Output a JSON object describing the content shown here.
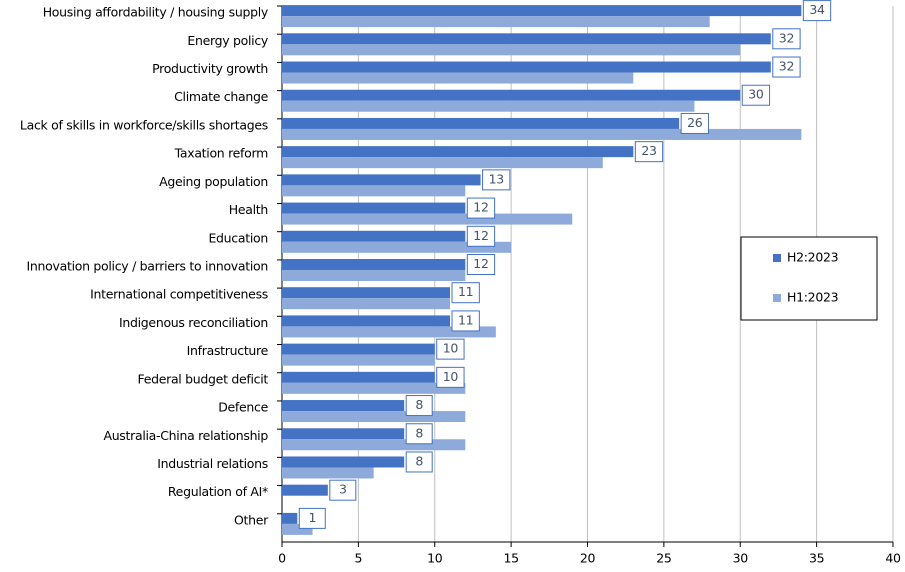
{
  "chart_data": {
    "type": "bar",
    "orientation": "horizontal",
    "categories": [
      "Housing affordability / housing supply",
      "Energy policy",
      "Productivity growth",
      "Climate change",
      "Lack of skills in workforce/skills shortages",
      "Taxation reform",
      "Ageing population",
      "Health",
      "Education",
      "Innovation policy / barriers to innovation",
      "International competitiveness",
      "Indigenous reconciliation",
      "Infrastructure",
      "Federal budget deficit",
      "Defence",
      "Australia-China relationship",
      "Industrial relations",
      "Regulation of AI*",
      "Other"
    ],
    "series": [
      {
        "name": "H2:2023",
        "color": "#4472c4",
        "values": [
          34,
          32,
          32,
          30,
          26,
          23,
          13,
          12,
          12,
          12,
          11,
          11,
          10,
          10,
          8,
          8,
          8,
          3,
          1
        ],
        "data_labels": true
      },
      {
        "name": "H1:2023",
        "color": "#8eaadb",
        "values": [
          28,
          30,
          23,
          27,
          34,
          21,
          12,
          19,
          15,
          12,
          11,
          14,
          10,
          12,
          12,
          12,
          6,
          null,
          2
        ],
        "data_labels": false
      }
    ],
    "xlim": [
      0,
      40
    ],
    "xticks": [
      0,
      5,
      10,
      15,
      20,
      25,
      30,
      35,
      40
    ],
    "grid": true,
    "legend": "right"
  }
}
